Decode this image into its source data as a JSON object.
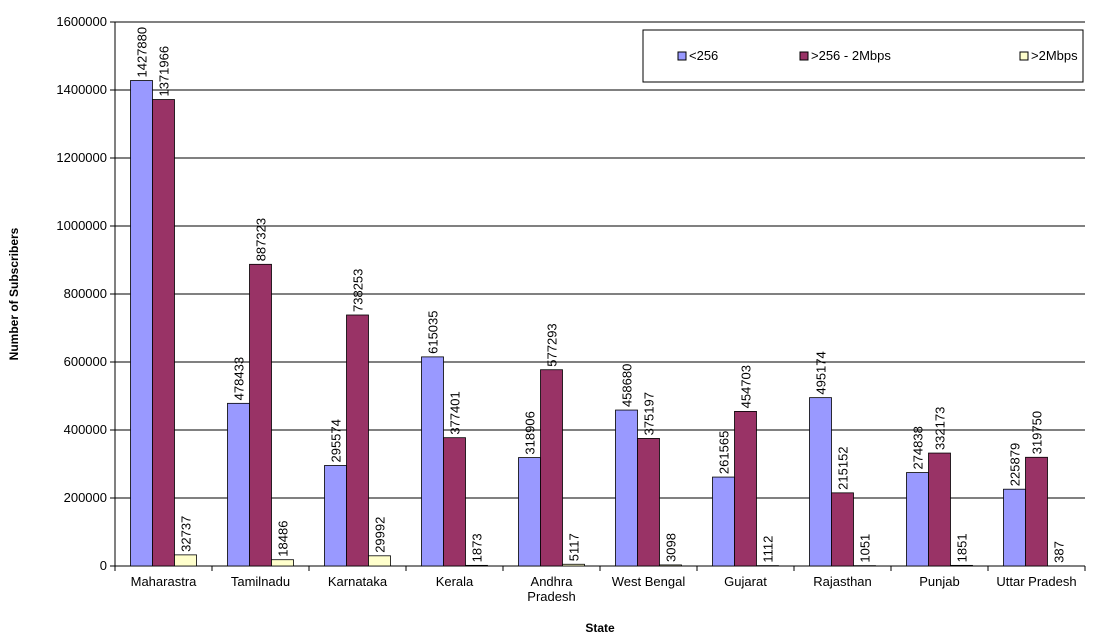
{
  "chart_data": {
    "type": "bar",
    "x_label": "State",
    "y_label": "Number of Subscribers",
    "categories": [
      "Maharastra",
      "Tamilnadu",
      "Karnataka",
      "Kerala",
      "Andhra Pradesh",
      "West Bengal",
      "Gujarat",
      "Rajasthan",
      "Punjab",
      "Uttar Pradesh"
    ],
    "series": [
      {
        "name": "<256",
        "color": "#9999ff",
        "values": [
          1427880,
          478433,
          295574,
          615035,
          318906,
          458680,
          261565,
          495174,
          274838,
          225879
        ]
      },
      {
        "name": ">256 - 2Mbps",
        "color": "#993366",
        "values": [
          1371966,
          887323,
          738253,
          377401,
          577293,
          375197,
          454703,
          215152,
          332173,
          319750
        ]
      },
      {
        "name": ">2Mbps",
        "color": "#ffffcc",
        "values": [
          32737,
          18486,
          29992,
          1873,
          5117,
          3098,
          1112,
          1051,
          1851,
          387
        ]
      }
    ],
    "ylim": [
      0,
      1600000
    ],
    "yticks": [
      0,
      200000,
      400000,
      600000,
      800000,
      1000000,
      1200000,
      1400000,
      1600000
    ],
    "grid": true,
    "legend": "top-right"
  }
}
